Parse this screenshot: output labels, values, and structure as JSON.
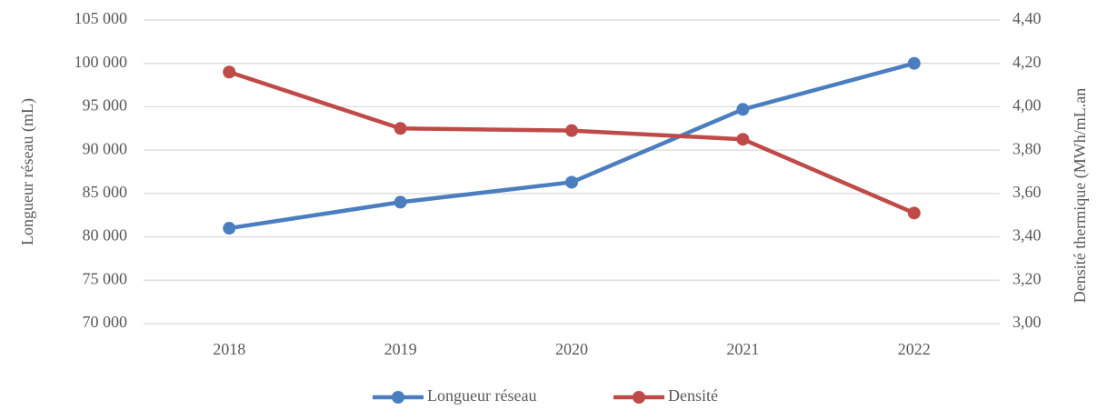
{
  "chart_data": {
    "type": "line",
    "categories": [
      "2018",
      "2019",
      "2020",
      "2021",
      "2022"
    ],
    "series": [
      {
        "name": "Longueur réseau",
        "color": "#4a7ebf",
        "values": [
          81000,
          84000,
          86300,
          94700,
          100000
        ]
      },
      {
        "name": "Densité",
        "color": "#be4b48",
        "axis": "y2",
        "values": [
          4.16,
          3.9,
          3.89,
          3.85,
          3.51
        ]
      }
    ],
    "y_label": "Longueur réseau (mL)",
    "y2_label": "Densité thermique (MWh/mL.an",
    "ylim": [
      70000,
      105000
    ],
    "yticks": [
      {
        "value": 70000,
        "label": "70 000"
      },
      {
        "value": 75000,
        "label": "75 000"
      },
      {
        "value": 80000,
        "label": "80 000"
      },
      {
        "value": 85000,
        "label": "85 000"
      },
      {
        "value": 90000,
        "label": "90 000"
      },
      {
        "value": 95000,
        "label": "95 000"
      },
      {
        "value": 100000,
        "label": "100 000"
      },
      {
        "value": 105000,
        "label": "105 000"
      }
    ],
    "y2lim": [
      3.0,
      4.4
    ],
    "y2ticks": [
      {
        "value": 3.0,
        "label": "3,00"
      },
      {
        "value": 3.2,
        "label": "3,20"
      },
      {
        "value": 3.4,
        "label": "3,40"
      },
      {
        "value": 3.6,
        "label": "3,60"
      },
      {
        "value": 3.8,
        "label": "3,80"
      },
      {
        "value": 4.0,
        "label": "4,00"
      },
      {
        "value": 4.2,
        "label": "4,20"
      },
      {
        "value": 4.4,
        "label": "4,40"
      }
    ],
    "grid": true,
    "legend": "bottom"
  }
}
